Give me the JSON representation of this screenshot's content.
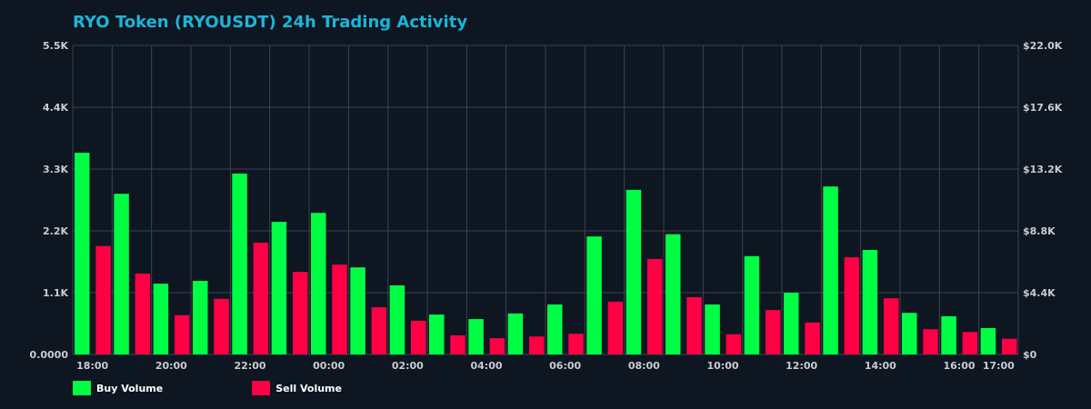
{
  "title": "RYO Token (RYOUSDT) 24h Trading Activity",
  "colors": {
    "background": "#0d1621",
    "title": "#1ab6d8",
    "grid": "#3a4350",
    "axis_text": "#c8ccd2",
    "buy": "#00ff44",
    "sell": "#ff0044"
  },
  "legend": {
    "buy_label": "Buy Volume",
    "sell_label": "Sell Volume"
  },
  "chart_data": {
    "type": "bar",
    "title": "RYO Token (RYOUSDT) 24h Trading Activity",
    "xlabel": "",
    "ylabel": "",
    "ylim": [
      0,
      5500
    ],
    "y2lim": [
      0,
      22000
    ],
    "grid": true,
    "legend_position": "bottom-left",
    "categories": [
      "18:00",
      "19:00",
      "20:00",
      "21:00",
      "22:00",
      "23:00",
      "00:00",
      "01:00",
      "02:00",
      "03:00",
      "04:00",
      "05:00",
      "06:00",
      "07:00",
      "08:00",
      "09:00",
      "10:00",
      "11:00",
      "12:00",
      "13:00",
      "14:00",
      "15:00",
      "16:00",
      "17:00"
    ],
    "x_tick_labels": [
      "18:00",
      "20:00",
      "22:00",
      "00:00",
      "02:00",
      "04:00",
      "06:00",
      "08:00",
      "10:00",
      "12:00",
      "14:00",
      "16:00",
      "17:00"
    ],
    "y_tick_labels": [
      "0.0000",
      "1.1K",
      "2.2K",
      "3.3K",
      "4.4K",
      "5.5K"
    ],
    "y2_tick_labels": [
      "$0",
      "$4.4K",
      "$8.8K",
      "$13.2K",
      "$17.6K",
      "$22.0K"
    ],
    "series": [
      {
        "name": "Buy Volume",
        "color": "#00ff44",
        "values": [
          3590,
          2860,
          1260,
          1310,
          3220,
          2360,
          2520,
          1550,
          1230,
          710,
          630,
          730,
          890,
          2100,
          2930,
          2140,
          890,
          1750,
          1100,
          2990,
          1860,
          740,
          680,
          470
        ]
      },
      {
        "name": "Sell Volume",
        "color": "#ff0044",
        "values": [
          1930,
          1440,
          700,
          990,
          1990,
          1470,
          1600,
          840,
          600,
          340,
          290,
          320,
          370,
          940,
          1700,
          1020,
          360,
          790,
          570,
          1730,
          1000,
          450,
          400,
          280
        ]
      }
    ]
  }
}
